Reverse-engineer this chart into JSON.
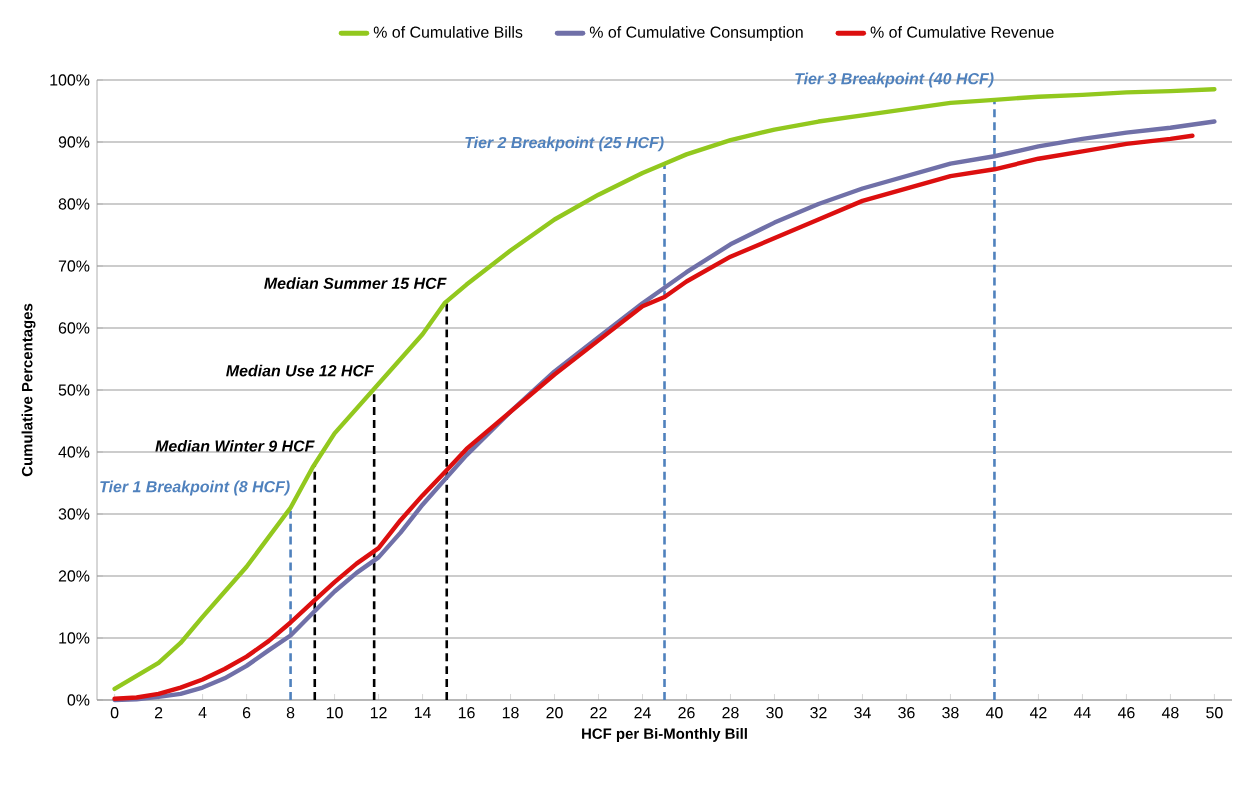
{
  "chart_data": {
    "type": "line",
    "xlabel": "HCF per Bi-Monthly Bill",
    "ylabel": "Cumulative Percentages",
    "xlim": [
      -0.8,
      50.8
    ],
    "xticks": [
      0,
      2,
      4,
      6,
      8,
      10,
      12,
      14,
      16,
      18,
      20,
      22,
      24,
      26,
      28,
      30,
      32,
      34,
      36,
      38,
      40,
      42,
      44,
      46,
      48,
      50
    ],
    "ylim": [
      0,
      100
    ],
    "yticks": [
      {
        "value": 0,
        "label": "0%"
      },
      {
        "value": 10,
        "label": "10%"
      },
      {
        "value": 20,
        "label": "20%"
      },
      {
        "value": 30,
        "label": "30%"
      },
      {
        "value": 40,
        "label": "40%"
      },
      {
        "value": 50,
        "label": "50%"
      },
      {
        "value": 60,
        "label": "60%"
      },
      {
        "value": 70,
        "label": "70%"
      },
      {
        "value": 80,
        "label": "80%"
      },
      {
        "value": 90,
        "label": "90%"
      },
      {
        "value": 100,
        "label": "100%"
      }
    ],
    "grid": "y",
    "legend": "top",
    "series": [
      {
        "name": "% of Cumulative Bills",
        "color": "#92c81e",
        "x": [
          0,
          2,
          3,
          4,
          6,
          8,
          9,
          10,
          12,
          14,
          15,
          16,
          18,
          20,
          22,
          24,
          25,
          26,
          28,
          30,
          32,
          34,
          36,
          38,
          40,
          42,
          44,
          46,
          48,
          50
        ],
        "values": [
          1.8,
          6,
          9.2,
          13.4,
          21.5,
          31,
          37.5,
          43,
          51,
          59,
          64,
          67,
          72.5,
          77.5,
          81.5,
          85,
          86.5,
          88,
          90.3,
          92,
          93.3,
          94.3,
          95.3,
          96.3,
          96.8,
          97.3,
          97.6,
          98,
          98.2,
          98.5
        ]
      },
      {
        "name": "% of Cumulative Consumption",
        "color": "#7070a8",
        "x": [
          0,
          1,
          2,
          3,
          4,
          5,
          6,
          7,
          8,
          9,
          10,
          11,
          12,
          13,
          14,
          15,
          16,
          18,
          20,
          22,
          24,
          25,
          26,
          28,
          30,
          32,
          34,
          36,
          38,
          40,
          42,
          44,
          46,
          48,
          50
        ],
        "values": [
          0,
          0.1,
          0.5,
          1,
          2,
          3.5,
          5.5,
          8,
          10.4,
          14,
          17.5,
          20.5,
          23,
          27,
          31.5,
          35.5,
          39.5,
          46.5,
          53,
          58.5,
          64,
          66.5,
          69,
          73.5,
          77,
          80,
          82.5,
          84.5,
          86.5,
          87.7,
          89.3,
          90.5,
          91.5,
          92.3,
          93.3
        ]
      },
      {
        "name": "% of Cumulative Revenue",
        "color": "#dc0f0f",
        "x": [
          0,
          1,
          2,
          3,
          4,
          5,
          6,
          7,
          8,
          9,
          10,
          11,
          12,
          13,
          14,
          15,
          16,
          18,
          20,
          22,
          24,
          25,
          26,
          28,
          30,
          32,
          34,
          36,
          38,
          40,
          42,
          44,
          46,
          48,
          49
        ],
        "values": [
          0.2,
          0.4,
          1,
          2,
          3.3,
          5,
          7,
          9.5,
          12.5,
          15.8,
          19,
          22,
          24.5,
          29,
          33,
          36.7,
          40.5,
          46.5,
          52.5,
          58,
          63.5,
          65,
          67.5,
          71.5,
          74.5,
          77.5,
          80.5,
          82.5,
          84.5,
          85.6,
          87.3,
          88.5,
          89.7,
          90.5,
          91
        ]
      }
    ],
    "ref_lines": [
      {
        "axis": "x",
        "value": 8,
        "label": "Tier 1 Breakpoint (8 HCF)",
        "color": "#4f81bd",
        "line_style": "dashed"
      },
      {
        "axis": "x",
        "value": 9.1,
        "label": "Median Winter 9 HCF",
        "color": "#000000",
        "line_style": "dashed"
      },
      {
        "axis": "x",
        "value": 11.8,
        "label": "Median Use 12 HCF",
        "color": "#000000",
        "line_style": "dashed"
      },
      {
        "axis": "x",
        "value": 15.1,
        "label": "Median Summer 15 HCF",
        "color": "#000000",
        "line_style": "dashed"
      },
      {
        "axis": "x",
        "value": 25,
        "label": "Tier 2 Breakpoint (25 HCF)",
        "color": "#4f81bd",
        "line_style": "dashed"
      },
      {
        "axis": "x",
        "value": 40,
        "label": "Tier 3 Breakpoint (40 HCF)",
        "color": "#4f81bd",
        "line_style": "dashed"
      }
    ]
  }
}
